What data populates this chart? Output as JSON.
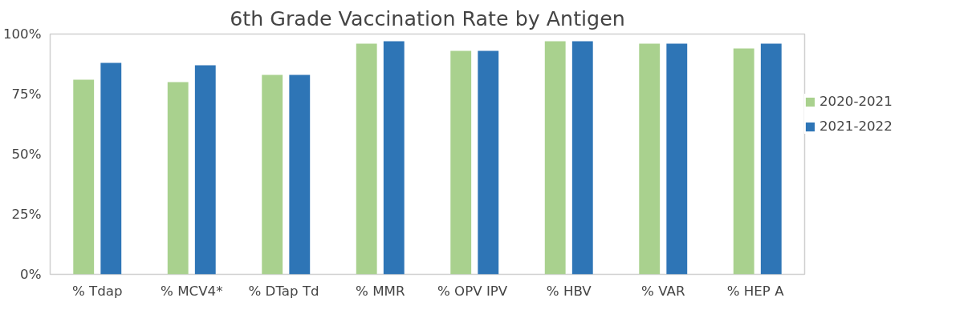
{
  "chart_data": {
    "type": "bar",
    "title": "6th Grade Vaccination Rate by Antigen",
    "categories": [
      "% Tdap",
      "% MCV4*",
      "% DTap  Td",
      "% MMR",
      "% OPV  IPV",
      "% HBV",
      "% VAR",
      "% HEP  A"
    ],
    "series": [
      {
        "name": "2020-2021",
        "color": "#a9d18e",
        "values": [
          81,
          80,
          83,
          96,
          93,
          97,
          96,
          94
        ]
      },
      {
        "name": "2021-2022",
        "color": "#2e75b6",
        "values": [
          88,
          87,
          83,
          97,
          93,
          97,
          96,
          96
        ]
      }
    ],
    "ylim": [
      0,
      100
    ],
    "yticks": [
      {
        "value": 0,
        "label": "0%"
      },
      {
        "value": 25,
        "label": "25%"
      },
      {
        "value": 50,
        "label": "50%"
      },
      {
        "value": 75,
        "label": "75%"
      },
      {
        "value": 100,
        "label": "100%"
      }
    ],
    "grid": false,
    "legend": "right"
  }
}
